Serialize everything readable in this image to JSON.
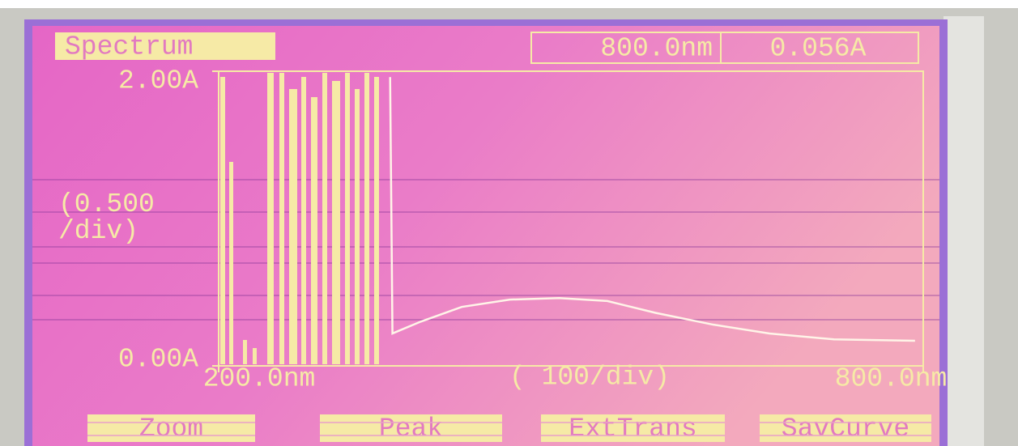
{
  "header": {
    "mode": "Spectrum",
    "wavelength": "800.0nm",
    "absorbance": "0.056A"
  },
  "chart_data": {
    "type": "line",
    "y_label": "(0.500 /div)",
    "x_label": "( 100/div)",
    "x": [
      346,
      348,
      372,
      407,
      448,
      490,
      531,
      572,
      621,
      669,
      724,
      793
    ],
    "values": [
      1.96,
      0.22,
      0.3,
      0.4,
      0.45,
      0.46,
      0.44,
      0.36,
      0.28,
      0.22,
      0.18,
      0.17
    ],
    "color": "#fff4e8",
    "xlim": [
      200,
      800
    ],
    "ylim": [
      0,
      2
    ],
    "xticks": [
      {
        "value": 200,
        "label": "200.0nm"
      },
      {
        "value": 800,
        "label": "800.0nm"
      }
    ],
    "yticks": [
      {
        "value": 0,
        "label": "0.00A"
      },
      {
        "value": 2,
        "label": "2.00A"
      }
    ]
  },
  "softkeys": [
    "Zoom",
    "Peak",
    "ExtTrans",
    "SavCurve"
  ]
}
